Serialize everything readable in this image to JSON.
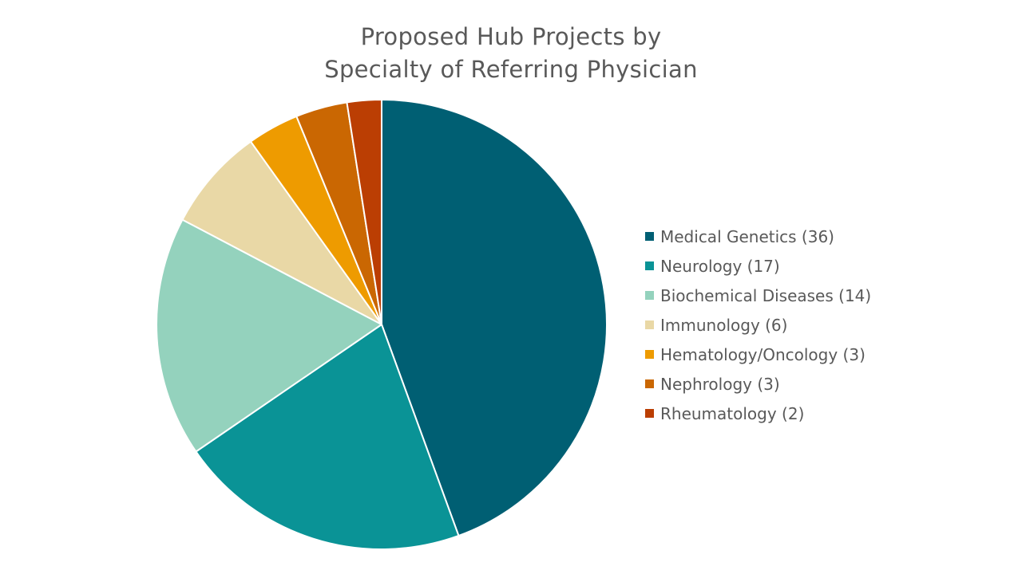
{
  "chart_data": {
    "type": "pie",
    "title_lines": [
      "Proposed Hub Projects by",
      "Specialty of Referring Physician"
    ],
    "categories": [
      "Medical Genetics",
      "Neurology",
      "Biochemical Diseases",
      "Immunology",
      "Hematology/Oncology",
      "Nephrology",
      "Rheumatology"
    ],
    "values": [
      36,
      17,
      14,
      6,
      3,
      3,
      2
    ],
    "legend_labels": [
      "Medical Genetics (36)",
      "Neurology (17)",
      "Biochemical Diseases (14)",
      "Immunology (6)",
      "Hematology/Oncology (3)",
      "Nephrology (3)",
      "Rheumatology (2)"
    ],
    "colors": [
      "#005F73",
      "#0A9396",
      "#94D2BD",
      "#E9D8A6",
      "#EE9B00",
      "#CA6702",
      "#BB3E03"
    ],
    "start_angle": "12 o'clock",
    "direction": "clockwise",
    "legend_position": "right"
  }
}
